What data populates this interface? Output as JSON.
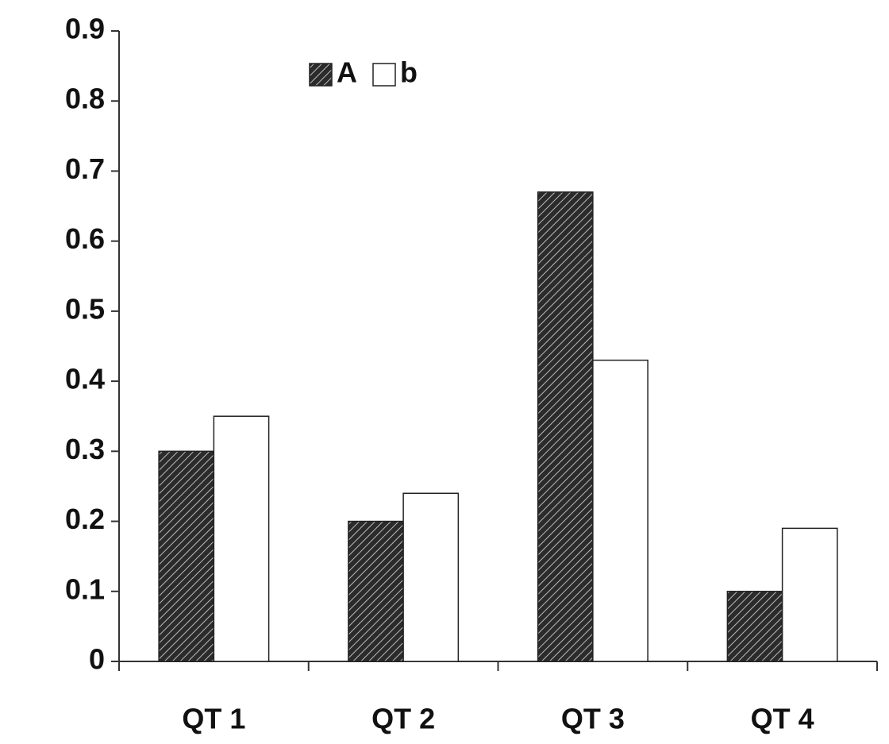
{
  "chart_data": {
    "type": "bar",
    "categories": [
      "QT 1",
      "QT 2",
      "QT 3",
      "QT 4"
    ],
    "series": [
      {
        "name": "A",
        "color": "#2b2b2b",
        "hatch": true,
        "values": [
          0.3,
          0.2,
          0.67,
          0.1
        ]
      },
      {
        "name": "b",
        "color": "#ffffff",
        "hatch": false,
        "values": [
          0.35,
          0.24,
          0.43,
          0.19
        ]
      }
    ],
    "ylim": [
      0,
      0.9
    ],
    "yticks": [
      0,
      0.1,
      0.2,
      0.3,
      0.4,
      0.5,
      0.6,
      0.7,
      0.8,
      0.9
    ],
    "grid": false,
    "legend": "upper center"
  }
}
